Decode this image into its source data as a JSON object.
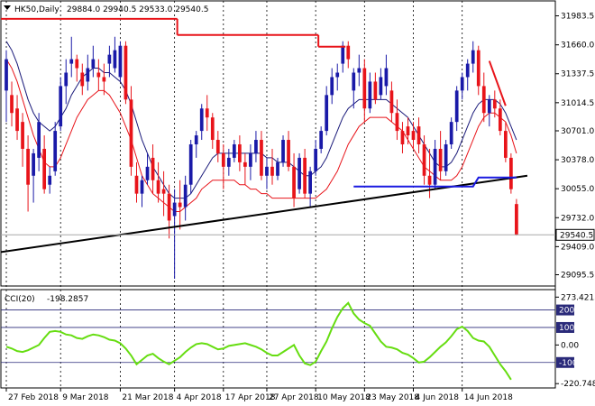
{
  "header": {
    "symbol": "HK50,Daily",
    "ohlc": "29884.0 29940.5 29533.0 29540.5"
  },
  "chart_data": [
    {
      "type": "candlestick",
      "title": "HK50,Daily",
      "colors": {
        "up": "#1a1aa8",
        "down": "#e8141a",
        "ma_fast": "#1a1a7a",
        "ma_slow": "#e8141a",
        "trend": "#000000",
        "level": "#1a1ae0",
        "current": "#a8a8a8"
      },
      "y_ticks": [
        "31983.5",
        "31660.0",
        "31337.5",
        "31014.5",
        "30701.0",
        "30378.0",
        "30055.0",
        "29732.0",
        "29409.0",
        "29095.5"
      ],
      "ylim": [
        29000,
        32120
      ],
      "current_price": "29540.5",
      "x_labels": [
        "27 Feb 2018",
        "9 Mar 2018",
        "21 Mar 2018",
        "4 Apr 2018",
        "17 Apr 2018",
        "27 Apr 2018",
        "10 May 2018",
        "23 May 2018",
        "4 Jun 2018",
        "14 Jun 2018"
      ],
      "candles": [
        {
          "o": 31150,
          "h": 31600,
          "l": 30800,
          "c": 31500
        },
        {
          "o": 31100,
          "h": 31250,
          "l": 30750,
          "c": 30900
        },
        {
          "o": 30950,
          "h": 31100,
          "l": 30600,
          "c": 30700
        },
        {
          "o": 30800,
          "h": 30900,
          "l": 30300,
          "c": 30500
        },
        {
          "o": 30500,
          "h": 30650,
          "l": 29800,
          "c": 30100
        },
        {
          "o": 30200,
          "h": 30500,
          "l": 29900,
          "c": 30450
        },
        {
          "o": 30400,
          "h": 30900,
          "l": 30250,
          "c": 30800
        },
        {
          "o": 30500,
          "h": 30650,
          "l": 30000,
          "c": 30050
        },
        {
          "o": 30100,
          "h": 30300,
          "l": 30000,
          "c": 30200
        },
        {
          "o": 30250,
          "h": 30800,
          "l": 30200,
          "c": 30700
        },
        {
          "o": 30750,
          "h": 31300,
          "l": 30700,
          "c": 31200
        },
        {
          "o": 31200,
          "h": 31500,
          "l": 31000,
          "c": 31350
        },
        {
          "o": 31450,
          "h": 31750,
          "l": 31300,
          "c": 31500
        },
        {
          "o": 31500,
          "h": 31550,
          "l": 31250,
          "c": 31400
        },
        {
          "o": 31350,
          "h": 31450,
          "l": 31100,
          "c": 31200
        },
        {
          "o": 31250,
          "h": 31550,
          "l": 31150,
          "c": 31400
        },
        {
          "o": 31400,
          "h": 31650,
          "l": 31300,
          "c": 31500
        },
        {
          "o": 31350,
          "h": 31500,
          "l": 31150,
          "c": 31300
        },
        {
          "o": 31300,
          "h": 31450,
          "l": 31100,
          "c": 31250
        },
        {
          "o": 31450,
          "h": 31650,
          "l": 31300,
          "c": 31550
        },
        {
          "o": 31400,
          "h": 31750,
          "l": 31350,
          "c": 31600
        },
        {
          "o": 31300,
          "h": 31700,
          "l": 31250,
          "c": 31650
        },
        {
          "o": 31650,
          "h": 31700,
          "l": 31000,
          "c": 31050
        },
        {
          "o": 31050,
          "h": 31200,
          "l": 30200,
          "c": 30300
        },
        {
          "o": 30200,
          "h": 30350,
          "l": 29900,
          "c": 30000
        },
        {
          "o": 30000,
          "h": 30200,
          "l": 29850,
          "c": 30150
        },
        {
          "o": 30150,
          "h": 30450,
          "l": 30100,
          "c": 30300
        },
        {
          "o": 30400,
          "h": 30550,
          "l": 30000,
          "c": 30150
        },
        {
          "o": 30150,
          "h": 30350,
          "l": 29900,
          "c": 30000
        },
        {
          "o": 30050,
          "h": 30250,
          "l": 29750,
          "c": 30000
        },
        {
          "o": 30000,
          "h": 30100,
          "l": 29500,
          "c": 29700
        },
        {
          "o": 29750,
          "h": 30050,
          "l": 29050,
          "c": 29900
        },
        {
          "o": 29900,
          "h": 30150,
          "l": 29600,
          "c": 29850
        },
        {
          "o": 29850,
          "h": 30200,
          "l": 29700,
          "c": 30100
        },
        {
          "o": 30100,
          "h": 30600,
          "l": 30000,
          "c": 30550
        },
        {
          "o": 30550,
          "h": 30700,
          "l": 30400,
          "c": 30650
        },
        {
          "o": 30700,
          "h": 31000,
          "l": 30600,
          "c": 30950
        },
        {
          "o": 30950,
          "h": 31100,
          "l": 30700,
          "c": 30850
        },
        {
          "o": 30850,
          "h": 30900,
          "l": 30500,
          "c": 30600
        },
        {
          "o": 30600,
          "h": 30700,
          "l": 30350,
          "c": 30450
        },
        {
          "o": 30450,
          "h": 30550,
          "l": 30050,
          "c": 30300
        },
        {
          "o": 30300,
          "h": 30500,
          "l": 30200,
          "c": 30400
        },
        {
          "o": 30400,
          "h": 30600,
          "l": 30350,
          "c": 30550
        },
        {
          "o": 30550,
          "h": 30650,
          "l": 30250,
          "c": 30350
        },
        {
          "o": 30350,
          "h": 30450,
          "l": 30100,
          "c": 30300
        },
        {
          "o": 30300,
          "h": 30550,
          "l": 30150,
          "c": 30450
        },
        {
          "o": 30450,
          "h": 30700,
          "l": 30350,
          "c": 30600
        },
        {
          "o": 30600,
          "h": 30700,
          "l": 30150,
          "c": 30200
        },
        {
          "o": 30200,
          "h": 30400,
          "l": 30050,
          "c": 30300
        },
        {
          "o": 30300,
          "h": 30500,
          "l": 30100,
          "c": 30200
        },
        {
          "o": 30200,
          "h": 30400,
          "l": 30150,
          "c": 30350
        },
        {
          "o": 30350,
          "h": 30650,
          "l": 30300,
          "c": 30600
        },
        {
          "o": 30600,
          "h": 30700,
          "l": 30250,
          "c": 30300
        },
        {
          "o": 30300,
          "h": 30450,
          "l": 29850,
          "c": 29950
        },
        {
          "o": 30050,
          "h": 30450,
          "l": 30000,
          "c": 30400
        },
        {
          "o": 30400,
          "h": 30500,
          "l": 29950,
          "c": 30000
        },
        {
          "o": 30000,
          "h": 30300,
          "l": 29850,
          "c": 30250
        },
        {
          "o": 30250,
          "h": 30600,
          "l": 30200,
          "c": 30500
        },
        {
          "o": 30500,
          "h": 30750,
          "l": 30450,
          "c": 30700
        },
        {
          "o": 30700,
          "h": 31200,
          "l": 30650,
          "c": 31100
        },
        {
          "o": 31100,
          "h": 31400,
          "l": 31000,
          "c": 31300
        },
        {
          "o": 31300,
          "h": 31450,
          "l": 31150,
          "c": 31350
        },
        {
          "o": 31450,
          "h": 31700,
          "l": 31350,
          "c": 31650
        },
        {
          "o": 31650,
          "h": 31700,
          "l": 31400,
          "c": 31500
        },
        {
          "o": 31150,
          "h": 31400,
          "l": 30950,
          "c": 31350
        },
        {
          "o": 31350,
          "h": 31550,
          "l": 31200,
          "c": 31400
        },
        {
          "o": 31400,
          "h": 31500,
          "l": 30800,
          "c": 30950
        },
        {
          "o": 30950,
          "h": 31350,
          "l": 30900,
          "c": 31250
        },
        {
          "o": 31250,
          "h": 31350,
          "l": 31000,
          "c": 31050
        },
        {
          "o": 31100,
          "h": 31400,
          "l": 31050,
          "c": 31300
        },
        {
          "o": 31200,
          "h": 31550,
          "l": 31100,
          "c": 31400
        },
        {
          "o": 31150,
          "h": 31250,
          "l": 30800,
          "c": 30900
        },
        {
          "o": 30900,
          "h": 31050,
          "l": 30600,
          "c": 30700
        },
        {
          "o": 30700,
          "h": 30800,
          "l": 30450,
          "c": 30550
        },
        {
          "o": 30750,
          "h": 30850,
          "l": 30550,
          "c": 30650
        },
        {
          "o": 30700,
          "h": 30800,
          "l": 30500,
          "c": 30600
        },
        {
          "o": 30750,
          "h": 30850,
          "l": 30450,
          "c": 30550
        },
        {
          "o": 30550,
          "h": 30650,
          "l": 30100,
          "c": 30200
        },
        {
          "o": 30200,
          "h": 30500,
          "l": 29950,
          "c": 30100
        },
        {
          "o": 30100,
          "h": 30600,
          "l": 30050,
          "c": 30500
        },
        {
          "o": 30500,
          "h": 30700,
          "l": 30150,
          "c": 30250
        },
        {
          "o": 30250,
          "h": 30600,
          "l": 30200,
          "c": 30550
        },
        {
          "o": 30550,
          "h": 30850,
          "l": 30500,
          "c": 30800
        },
        {
          "o": 30800,
          "h": 31200,
          "l": 30700,
          "c": 31150
        },
        {
          "o": 31150,
          "h": 31350,
          "l": 31050,
          "c": 31300
        },
        {
          "o": 31300,
          "h": 31500,
          "l": 31150,
          "c": 31450
        },
        {
          "o": 31450,
          "h": 31700,
          "l": 31350,
          "c": 31600
        },
        {
          "o": 31600,
          "h": 31650,
          "l": 31100,
          "c": 31200
        },
        {
          "o": 31200,
          "h": 31350,
          "l": 30800,
          "c": 30900
        },
        {
          "o": 30900,
          "h": 31100,
          "l": 30750,
          "c": 31050
        },
        {
          "o": 31050,
          "h": 31150,
          "l": 30850,
          "c": 30950
        },
        {
          "o": 30950,
          "h": 31050,
          "l": 30650,
          "c": 30700
        },
        {
          "o": 30700,
          "h": 30800,
          "l": 30350,
          "c": 30400
        },
        {
          "o": 30400,
          "h": 30450,
          "l": 30000,
          "c": 30050
        },
        {
          "o": 29884,
          "h": 29940.5,
          "l": 29533,
          "c": 29540.5
        }
      ],
      "ma_fast": [
        31700,
        31600,
        31450,
        31250,
        31050,
        30900,
        30800,
        30750,
        30700,
        30750,
        30850,
        30950,
        31100,
        31200,
        31300,
        31350,
        31400,
        31400,
        31350,
        31350,
        31300,
        31250,
        31150,
        31000,
        30800,
        30600,
        30450,
        30300,
        30200,
        30100,
        30000,
        29950,
        29950,
        29950,
        30000,
        30100,
        30200,
        30300,
        30400,
        30450,
        30450,
        30450,
        30450,
        30450,
        30450,
        30450,
        30450,
        30450,
        30400,
        30400,
        30350,
        30350,
        30350,
        30300,
        30250,
        30200,
        30200,
        30250,
        30300,
        30400,
        30550,
        30700,
        30850,
        30950,
        31000,
        31050,
        31050,
        31050,
        31050,
        31050,
        31050,
        31000,
        30950,
        30900,
        30850,
        30750,
        30650,
        30550,
        30450,
        30350,
        30300,
        30300,
        30350,
        30450,
        30600,
        30750,
        30900,
        31000,
        31050,
        31050,
        31050,
        31000,
        30900,
        30750,
        30600
      ],
      "ma_slow": [
        31500,
        31400,
        31250,
        31050,
        30850,
        30650,
        30500,
        30350,
        30300,
        30300,
        30400,
        30550,
        30700,
        30850,
        30950,
        31050,
        31100,
        31150,
        31150,
        31100,
        31000,
        30900,
        30750,
        30600,
        30400,
        30200,
        30100,
        30000,
        29950,
        29900,
        29850,
        29800,
        29800,
        29850,
        29900,
        29950,
        30050,
        30100,
        30150,
        30150,
        30150,
        30150,
        30150,
        30100,
        30100,
        30050,
        30050,
        30000,
        30000,
        29950,
        29950,
        29950,
        29950,
        29950,
        29950,
        29950,
        29950,
        29950,
        30000,
        30050,
        30150,
        30250,
        30400,
        30550,
        30650,
        30750,
        30800,
        30850,
        30850,
        30850,
        30850,
        30800,
        30750,
        30700,
        30600,
        30500,
        30400,
        30300,
        30250,
        30200,
        30150,
        30150,
        30150,
        30200,
        30300,
        30450,
        30600,
        30750,
        30850,
        30900,
        30900,
        30850,
        30800,
        30650,
        30450
      ],
      "resistance_segments": [
        {
          "from": 0,
          "to": 31,
          "value": 31950
        },
        {
          "from": 32,
          "to": 57,
          "value": 31770
        },
        {
          "from": 58,
          "to": 62,
          "value": 31640
        }
      ],
      "trendline": {
        "from_index": -2,
        "from_value": 29340,
        "to_index": 96,
        "to_value": 30200
      },
      "support_level": {
        "from_index": 64,
        "to_index": 86,
        "value": 30080,
        "step_index": 86,
        "step_value": 30180,
        "end_index": 94
      },
      "projection": {
        "from_index": 89,
        "from_value": 31480,
        "to_index": 92,
        "to_value": 30980
      }
    },
    {
      "type": "line",
      "title": "CCI(20)",
      "value_label": "-198.2857",
      "y_ticks": [
        "273.4215",
        "200",
        "100",
        "0.00",
        "-100",
        "-220.748"
      ],
      "ylim": [
        -230,
        275
      ],
      "levels": [
        200,
        100,
        -100
      ],
      "values": [
        -10,
        -20,
        -35,
        -40,
        -30,
        -15,
        0,
        40,
        75,
        80,
        75,
        60,
        55,
        40,
        35,
        50,
        60,
        55,
        45,
        30,
        25,
        10,
        -20,
        -60,
        -110,
        -85,
        -60,
        -50,
        -75,
        -95,
        -110,
        -90,
        -70,
        -40,
        -15,
        5,
        10,
        5,
        -10,
        -25,
        -20,
        -5,
        0,
        5,
        10,
        0,
        -10,
        -25,
        -45,
        -60,
        -60,
        -40,
        -20,
        0,
        -60,
        -105,
        -115,
        -95,
        -35,
        20,
        95,
        160,
        210,
        240,
        180,
        145,
        125,
        110,
        65,
        20,
        -10,
        -15,
        -25,
        -45,
        -55,
        -75,
        -100,
        -95,
        -70,
        -40,
        -10,
        15,
        50,
        90,
        105,
        80,
        40,
        25,
        20,
        -10,
        -60,
        -110,
        -150,
        -198.2857
      ]
    }
  ]
}
